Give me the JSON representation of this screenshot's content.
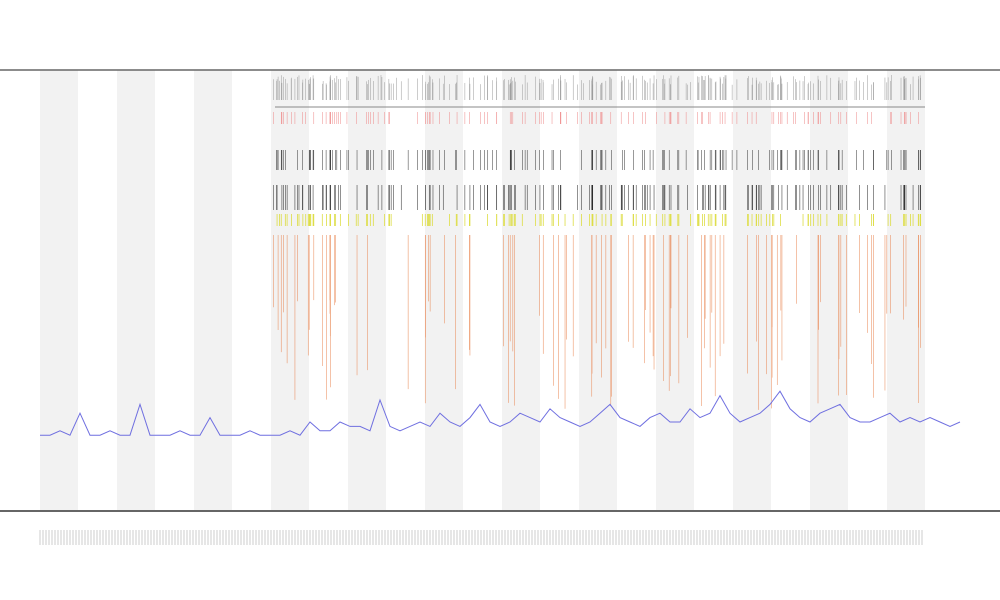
{
  "chart_data": {
    "type": "line",
    "values": [
      17,
      17,
      18,
      17,
      22,
      17,
      17,
      18,
      17,
      17,
      24,
      17,
      17,
      17,
      18,
      17,
      17,
      21,
      17,
      17,
      17,
      18,
      17,
      17,
      17,
      18,
      17,
      20,
      18,
      18,
      20,
      19,
      19,
      18,
      25,
      19,
      18,
      19,
      20,
      19,
      22,
      20,
      19,
      21,
      24,
      20,
      19,
      20,
      22,
      21,
      20,
      23,
      21,
      20,
      19,
      20,
      22,
      24,
      21,
      20,
      19,
      21,
      22,
      20,
      20,
      23,
      21,
      22,
      26,
      22,
      20,
      21,
      22,
      24,
      27,
      23,
      21,
      20,
      22,
      23,
      24,
      21,
      20,
      20,
      21,
      22,
      20,
      21,
      20,
      21,
      20,
      19,
      20
    ],
    "color": "#6f6fe0",
    "ylim": [
      0,
      100
    ]
  }
}
